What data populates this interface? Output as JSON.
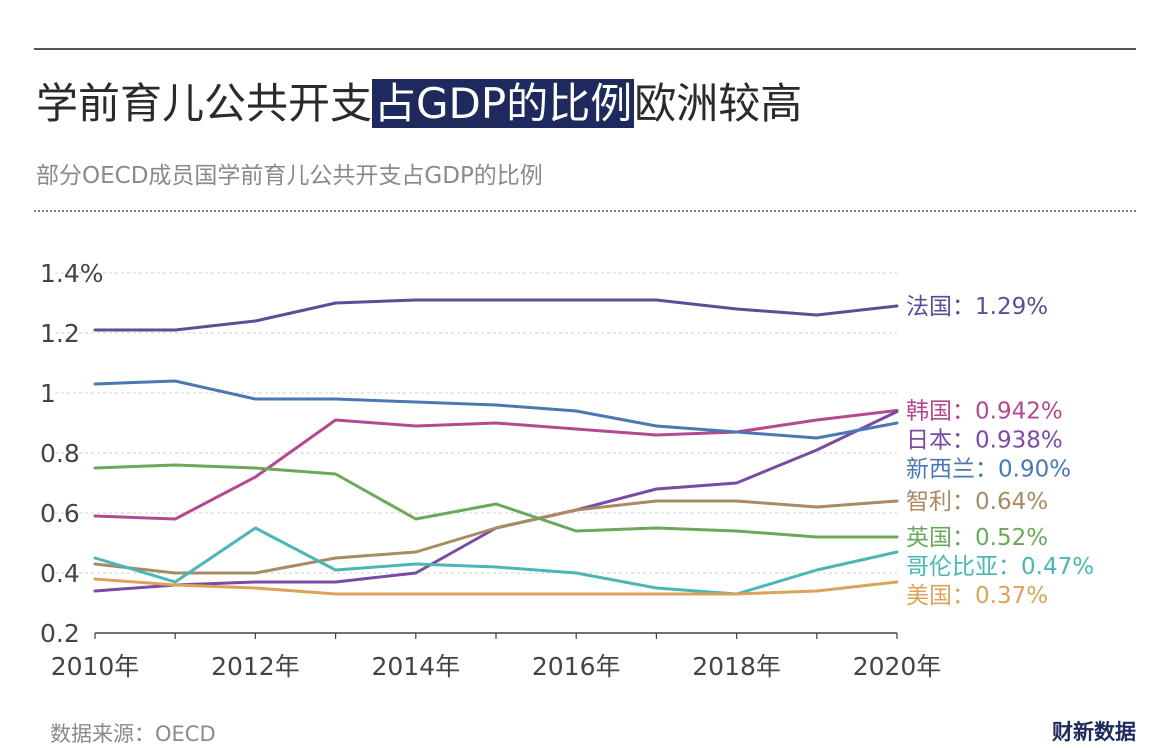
{
  "header": {
    "title_pre": "学前育儿公共开支",
    "title_highlight": "占GDP的比例",
    "title_post": "欧洲较高",
    "subtitle": "部分OECD成员国学前育儿公共开支占GDP的比例"
  },
  "footer": {
    "source": "数据来源：OECD",
    "logo": "财新数据"
  },
  "chart_data": {
    "type": "line",
    "title": "学前育儿公共开支占GDP的比例",
    "xlabel": "",
    "ylabel": "",
    "x": [
      2010,
      2011,
      2012,
      2013,
      2014,
      2015,
      2016,
      2017,
      2018,
      2019,
      2020
    ],
    "x_ticks": [
      "2010年",
      "2012年",
      "2014年",
      "2016年",
      "2018年",
      "2020年"
    ],
    "x_tick_values": [
      2010,
      2012,
      2014,
      2016,
      2018,
      2020
    ],
    "y_ticks": [
      "0.2",
      "0.4",
      "0.6",
      "0.8",
      "1",
      "1.2",
      "1.4%"
    ],
    "y_tick_values": [
      0.2,
      0.4,
      0.6,
      0.8,
      1.0,
      1.2,
      1.4
    ],
    "ylim": [
      0.2,
      1.4
    ],
    "grid": true,
    "series": [
      {
        "name": "法国",
        "label": "法国：1.29%",
        "color": "#5b4e96",
        "values": [
          1.21,
          1.21,
          1.24,
          1.3,
          1.31,
          1.31,
          1.31,
          1.31,
          1.28,
          1.26,
          1.29
        ]
      },
      {
        "name": "韩国",
        "label": "韩国：0.942%",
        "color": "#b5498f",
        "values": [
          0.59,
          0.58,
          0.72,
          0.91,
          0.89,
          0.9,
          0.88,
          0.86,
          0.87,
          0.91,
          0.942
        ]
      },
      {
        "name": "日本",
        "label": "日本：0.938%",
        "color": "#7a4ba5",
        "values": [
          0.34,
          0.36,
          0.37,
          0.37,
          0.4,
          0.55,
          0.61,
          0.68,
          0.7,
          0.81,
          0.938
        ]
      },
      {
        "name": "新西兰",
        "label": "新西兰：0.90%",
        "color": "#4a78b0",
        "values": [
          1.03,
          1.04,
          0.98,
          0.98,
          0.97,
          0.96,
          0.94,
          0.89,
          0.87,
          0.85,
          0.9
        ]
      },
      {
        "name": "智利",
        "label": "智利：0.64%",
        "color": "#a88a63",
        "values": [
          0.43,
          0.4,
          0.4,
          0.45,
          0.47,
          0.55,
          0.61,
          0.64,
          0.64,
          0.62,
          0.64
        ]
      },
      {
        "name": "英国",
        "label": "英国：0.52%",
        "color": "#6aa95a",
        "values": [
          0.75,
          0.76,
          0.75,
          0.73,
          0.58,
          0.63,
          0.54,
          0.55,
          0.54,
          0.52,
          0.52
        ]
      },
      {
        "name": "哥伦比亚",
        "label": "哥伦比亚：0.47%",
        "color": "#4bb6b6",
        "values": [
          0.45,
          0.37,
          0.55,
          0.41,
          0.43,
          0.42,
          0.4,
          0.35,
          0.33,
          0.41,
          0.47
        ]
      },
      {
        "name": "美国",
        "label": "美国：0.37%",
        "color": "#dca25a",
        "values": [
          0.38,
          0.36,
          0.35,
          0.33,
          0.33,
          0.33,
          0.33,
          0.33,
          0.33,
          0.34,
          0.37
        ]
      }
    ]
  }
}
